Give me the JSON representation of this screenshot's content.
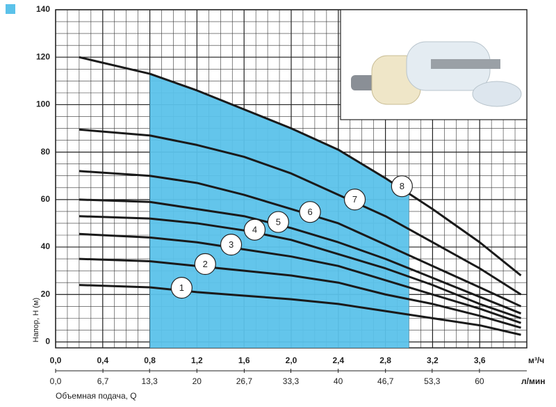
{
  "chart_data": {
    "type": "line",
    "y_label": "Напор, Н (м)",
    "x_label": "Объемная подача, Q",
    "x_unit": "м³/ч",
    "x2_unit": "л/мин",
    "x": [
      0.2,
      0.8,
      1.2,
      1.6,
      2.0,
      2.4,
      2.8,
      3.2,
      3.6,
      3.95
    ],
    "series": [
      {
        "name": "1",
        "color": "#1a1a1a",
        "values": [
          24,
          23,
          21,
          19.5,
          18,
          16,
          13,
          10,
          7,
          3
        ]
      },
      {
        "name": "2",
        "color": "#1a1a1a",
        "values": [
          35,
          34,
          32,
          30,
          28,
          25,
          20,
          16,
          11,
          6
        ]
      },
      {
        "name": "3",
        "color": "#1a1a1a",
        "values": [
          45.5,
          44,
          42,
          39,
          36,
          32,
          26,
          20,
          14,
          8
        ]
      },
      {
        "name": "4",
        "color": "#1a1a1a",
        "values": [
          53,
          52,
          50,
          47,
          43,
          37,
          31,
          24,
          16,
          10
        ]
      },
      {
        "name": "5",
        "color": "#1a1a1a",
        "values": [
          60,
          59,
          56,
          53,
          48,
          42,
          35,
          27,
          19,
          12
        ]
      },
      {
        "name": "6",
        "color": "#1a1a1a",
        "values": [
          72,
          70,
          67,
          62,
          56,
          50,
          41,
          32,
          23,
          15
        ]
      },
      {
        "name": "7",
        "color": "#1a1a1a",
        "values": [
          89.5,
          87,
          83,
          78,
          71,
          62,
          53,
          42,
          31,
          20
        ]
      },
      {
        "name": "8",
        "color": "#1a1a1a",
        "values": [
          120,
          113,
          106,
          98,
          90,
          81,
          69,
          56,
          42,
          28
        ]
      }
    ],
    "working_range": [
      0.8,
      3.0
    ],
    "working_color": "#5bc2ea",
    "xlim": [
      0,
      4.0
    ],
    "ylim": [
      -2.5,
      140
    ],
    "x2lim": [
      0,
      66.7
    ],
    "xticks": [
      {
        "value": 0,
        "label": "0,0"
      },
      {
        "value": 0.4,
        "label": "0,4"
      },
      {
        "value": 0.8,
        "label": "0,8"
      },
      {
        "value": 1.2,
        "label": "1,2"
      },
      {
        "value": 1.6,
        "label": "1,6"
      },
      {
        "value": 2.0,
        "label": "2,0"
      },
      {
        "value": 2.4,
        "label": "2,4"
      },
      {
        "value": 2.8,
        "label": "2,8"
      },
      {
        "value": 3.2,
        "label": "3,2"
      },
      {
        "value": 3.6,
        "label": "3,6"
      }
    ],
    "x2ticks": [
      {
        "value": 0,
        "label": "0,0"
      },
      {
        "value": 6.7,
        "label": "6,7"
      },
      {
        "value": 13.3,
        "label": "13,3"
      },
      20,
      {
        "value": 26.7,
        "label": "26,7"
      },
      {
        "value": 33.3,
        "label": "33,3"
      },
      40,
      {
        "value": 46.7,
        "label": "46,7"
      },
      {
        "value": 53.3,
        "label": "53,3"
      },
      60
    ],
    "yticks": [
      0,
      20,
      40,
      60,
      80,
      100,
      120,
      140
    ],
    "grid": true
  }
}
